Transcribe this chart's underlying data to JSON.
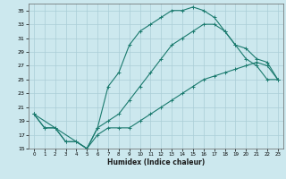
{
  "xlabel": "Humidex (Indice chaleur)",
  "bg_color": "#cce8ee",
  "grid_color": "#aacdd6",
  "line_color": "#1a7a6e",
  "xlim": [
    -0.5,
    23.5
  ],
  "ylim": [
    15,
    36
  ],
  "xticks": [
    0,
    1,
    2,
    3,
    4,
    5,
    6,
    7,
    8,
    9,
    10,
    11,
    12,
    13,
    14,
    15,
    16,
    17,
    18,
    19,
    20,
    21,
    22,
    23
  ],
  "yticks": [
    15,
    17,
    19,
    21,
    23,
    25,
    27,
    29,
    31,
    33,
    35
  ],
  "curve1_x": [
    0,
    1,
    2,
    3,
    4,
    5,
    6,
    7,
    8,
    9,
    10,
    11,
    12,
    13,
    14,
    15,
    16,
    17,
    18,
    19,
    20,
    21,
    22,
    23
  ],
  "curve1_y": [
    20,
    18,
    18,
    16,
    16,
    15,
    18,
    24,
    26,
    30,
    32,
    33,
    34,
    35,
    35,
    35.5,
    35,
    34,
    32,
    30,
    28,
    27,
    25,
    25
  ],
  "curve2_x": [
    0,
    1,
    2,
    3,
    4,
    5,
    6,
    7,
    8,
    9,
    10,
    11,
    12,
    13,
    14,
    15,
    16,
    17,
    18,
    19,
    20,
    21,
    22,
    23
  ],
  "curve2_y": [
    20,
    18,
    18,
    16,
    16,
    15,
    18,
    19,
    20,
    22,
    24,
    26,
    28,
    30,
    31,
    32,
    33,
    33,
    32,
    30,
    29.5,
    28,
    27.5,
    25
  ],
  "curve3_x": [
    0,
    5,
    6,
    7,
    8,
    9,
    10,
    11,
    12,
    13,
    14,
    15,
    16,
    17,
    18,
    19,
    20,
    21,
    22,
    23
  ],
  "curve3_y": [
    20,
    15,
    17,
    18,
    18,
    18,
    19,
    20,
    21,
    22,
    23,
    24,
    25,
    25.5,
    26,
    26.5,
    27,
    27.5,
    27,
    25
  ]
}
